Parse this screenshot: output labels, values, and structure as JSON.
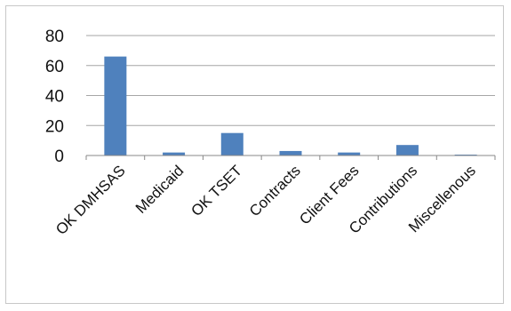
{
  "chart_data": {
    "type": "bar",
    "title": "",
    "xlabel": "",
    "ylabel": "",
    "categories": [
      "OK DMHSAS",
      "Medicaid",
      "OK TSET",
      "Contracts",
      "Client Fees",
      "Contributions",
      "Miscellenous"
    ],
    "values": [
      66,
      2,
      15,
      3,
      2,
      7,
      0.5
    ],
    "ylim": [
      0,
      80
    ],
    "yticks": [
      0,
      20,
      40,
      60,
      80
    ],
    "grid": true,
    "legend": "none",
    "bar_color": "#4f81bd",
    "grid_color": "#a6a6a6"
  }
}
